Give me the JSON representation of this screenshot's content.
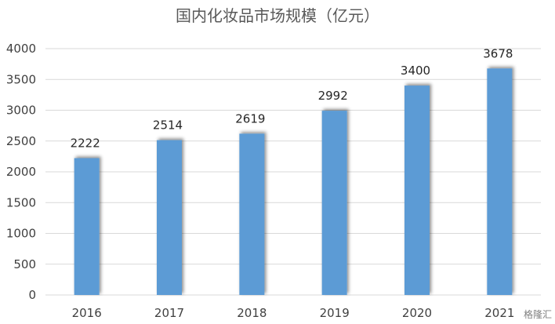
{
  "chart_data": {
    "type": "bar",
    "title": "国内化妆品市场规模（亿元）",
    "categories": [
      "2016",
      "2017",
      "2018",
      "2019",
      "2020",
      "2021"
    ],
    "values": [
      2222,
      2514,
      2619,
      2992,
      3400,
      3678
    ],
    "xlabel": "",
    "ylabel": "",
    "ylim": [
      0,
      4000
    ],
    "yticks": [
      0,
      500,
      1000,
      1500,
      2000,
      2500,
      3000,
      3500,
      4000
    ],
    "grid": true,
    "legend": "none",
    "bar_color": "#5B9BD5"
  },
  "watermark": "格隆汇"
}
